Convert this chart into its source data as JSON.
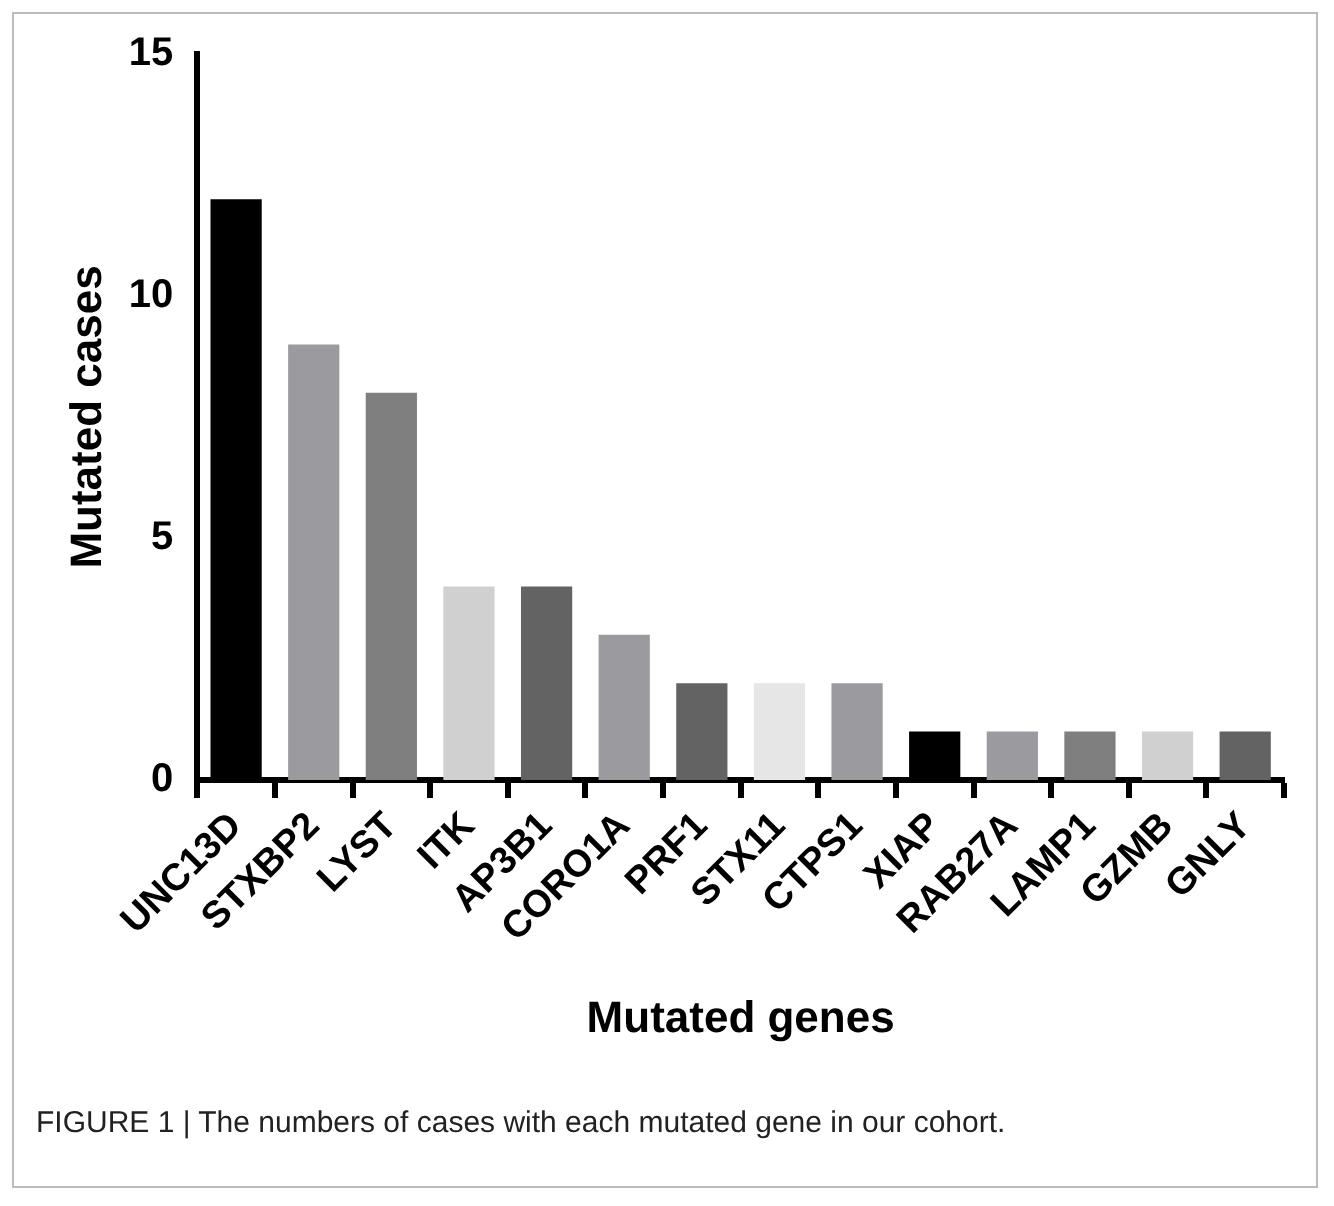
{
  "chart_data": {
    "type": "bar",
    "xlabel": "Mutated genes",
    "ylabel": "Mutated cases",
    "categories": [
      "UNC13D",
      "STXBP2",
      "LYST",
      "ITK",
      "AP3B1",
      "CORO1A",
      "PRF1",
      "STX11",
      "CTPS1",
      "XIAP",
      "RAB27A",
      "LAMP1",
      "GZMB",
      "GNLY"
    ],
    "values": [
      12,
      9,
      8,
      4,
      4,
      3,
      2,
      2,
      2,
      1,
      1,
      1,
      1,
      1
    ],
    "colors": [
      "#000000",
      "#9b9b9f",
      "#7f7f7f",
      "#d0d0d0",
      "#636363",
      "#9b9b9f",
      "#636363",
      "#e6e6e6",
      "#9b9b9f",
      "#000000",
      "#9b9b9f",
      "#7f7f7f",
      "#d0d0d0",
      "#636363"
    ],
    "ylim": [
      0,
      15
    ],
    "yticks": [
      0,
      5,
      10,
      15
    ],
    "grid": false,
    "legend": false,
    "annotations": [
      "FIGURE 1 | The numbers of cases with each mutated gene in our cohort."
    ]
  }
}
